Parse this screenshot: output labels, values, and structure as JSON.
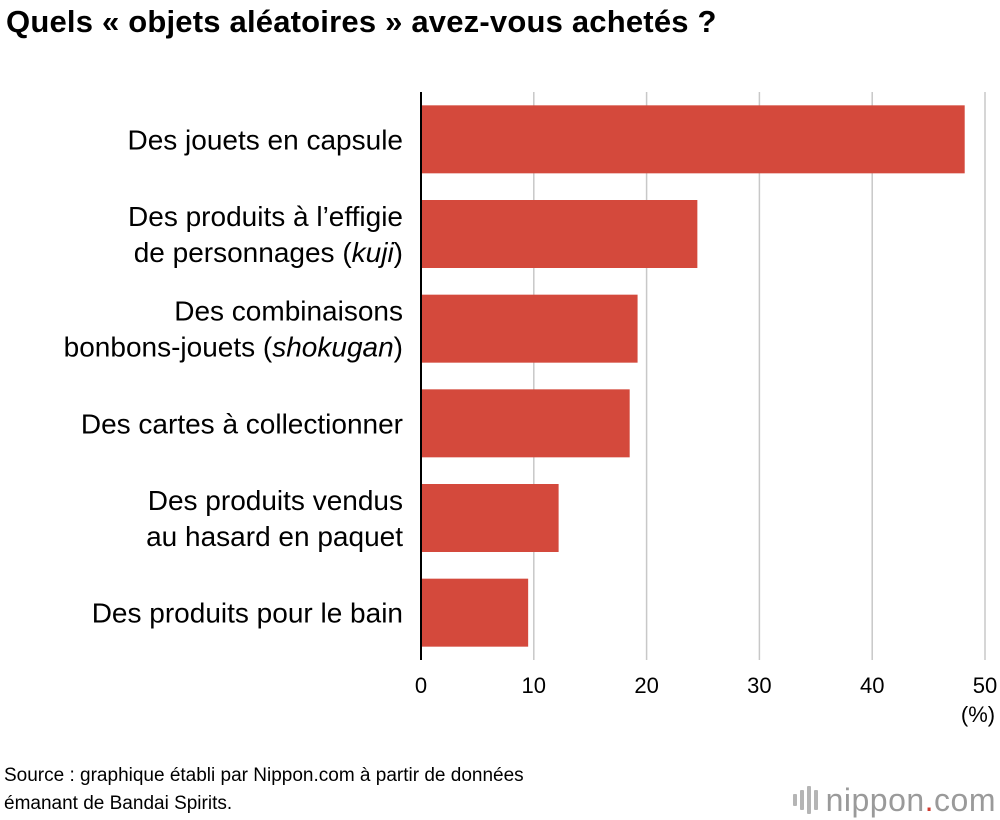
{
  "title": "Quels « objets aléatoires » avez-vous achetés ?",
  "source": {
    "line1": "Source : graphique établi par Nippon.com à partir de données",
    "line2": "émanant de Bandai Spirits."
  },
  "logo": {
    "icon": "nippon-bars-icon",
    "text_before": "nippon",
    "dot": ".",
    "text_after": "com"
  },
  "colors": {
    "bar": "#d4493c",
    "grid": "#c8c8c8",
    "axis": "#000000",
    "logo_dot": "#d03a2f"
  },
  "chart_data": {
    "type": "bar",
    "orientation": "horizontal",
    "categories": [
      [
        {
          "t": "Des jouets en capsule"
        }
      ],
      [
        {
          "t": "Des produits à l’effigie"
        }
      ],
      [
        {
          "t": "Des combinaisons"
        }
      ],
      [
        {
          "t": "Des cartes à collectionner"
        }
      ],
      [
        {
          "t": "Des produits vendus"
        }
      ],
      [
        {
          "t": "Des produits pour le bain"
        }
      ]
    ],
    "category_second_lines": [
      null,
      [
        {
          "t": "de personnages ("
        },
        {
          "t": "kuji",
          "italic": true
        },
        {
          "t": ")"
        }
      ],
      [
        {
          "t": "bonbons-jouets ("
        },
        {
          "t": "shokugan",
          "italic": true
        },
        {
          "t": ")"
        }
      ],
      null,
      [
        {
          "t": "au hasard en paquet"
        }
      ],
      null
    ],
    "values": [
      48.2,
      24.5,
      19.2,
      18.5,
      12.2,
      9.5
    ],
    "xlim": [
      0,
      50
    ],
    "xticks": [
      0,
      10,
      20,
      30,
      40,
      50
    ],
    "xlabel": "(%)",
    "grid": true
  }
}
